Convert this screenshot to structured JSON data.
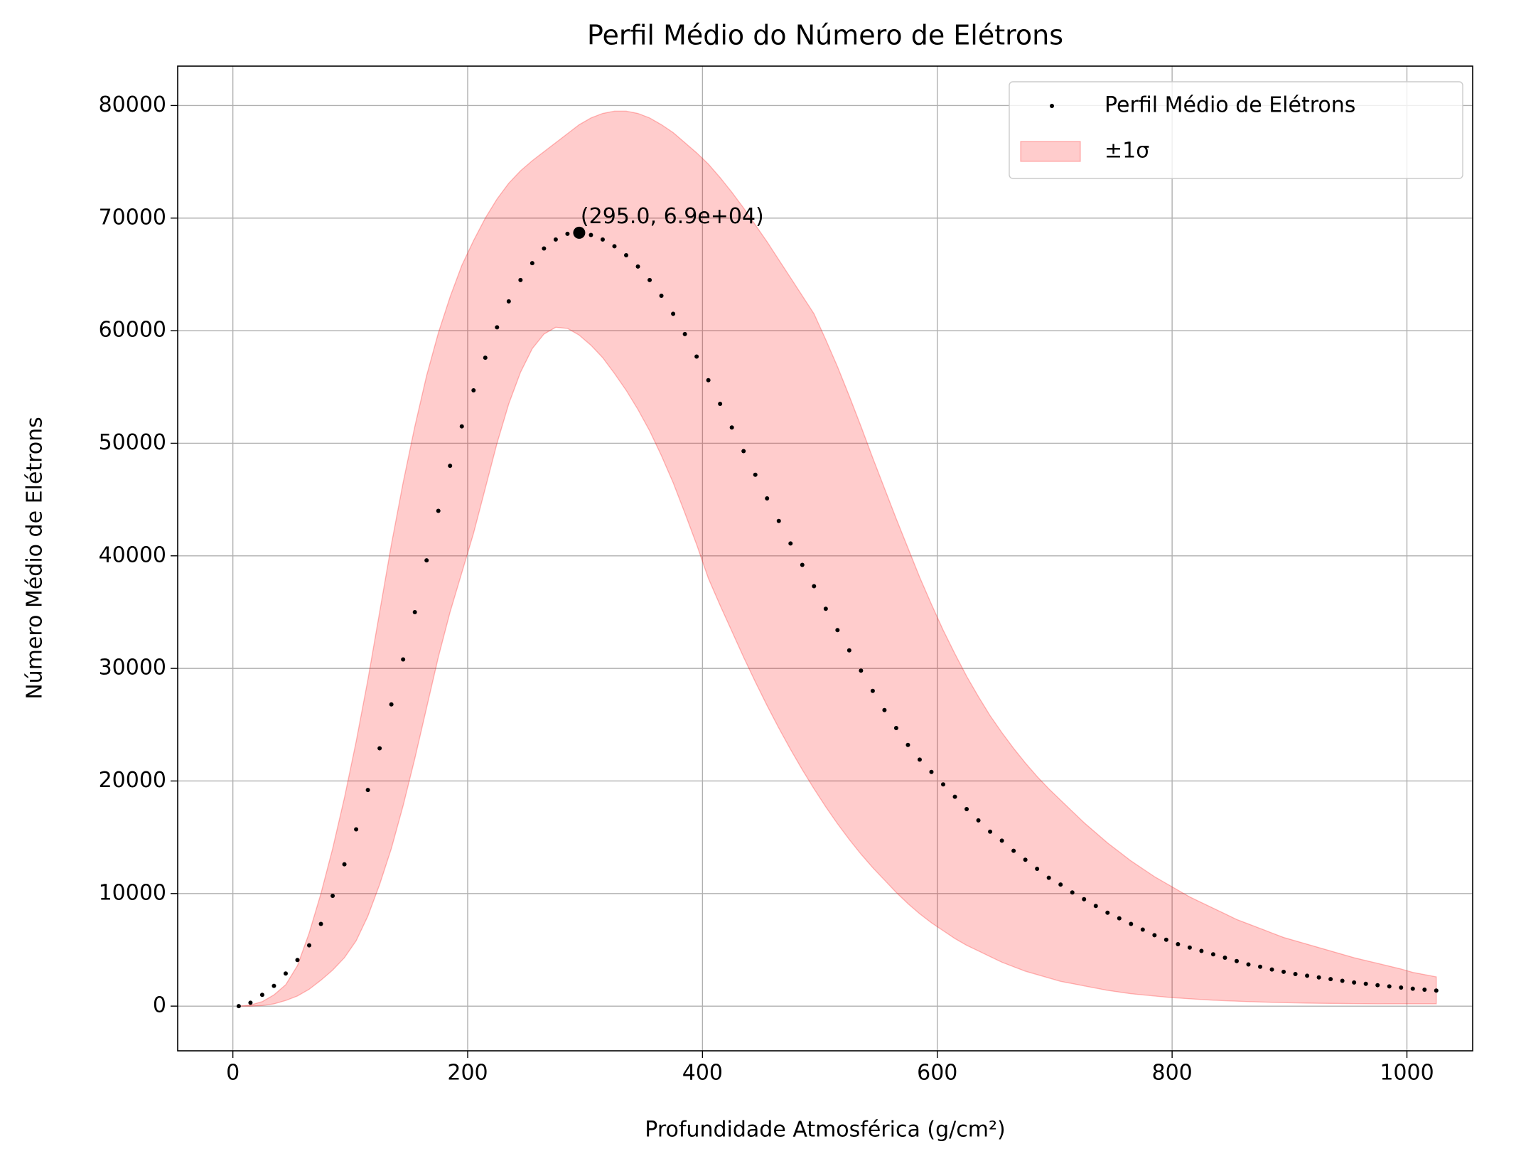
{
  "chart_data": {
    "type": "scatter",
    "title": "Perfil Médio do Número de Elétrons",
    "xlabel": "Profundidade Atmosférica (g/cm²)",
    "ylabel": "Número Médio de Elétrons",
    "x": [
      5,
      15,
      25,
      35,
      45,
      55,
      65,
      75,
      85,
      95,
      105,
      115,
      125,
      135,
      145,
      155,
      165,
      175,
      185,
      195,
      205,
      215,
      225,
      235,
      245,
      255,
      265,
      275,
      285,
      295,
      305,
      315,
      325,
      335,
      345,
      355,
      365,
      375,
      385,
      395,
      405,
      415,
      425,
      435,
      445,
      455,
      465,
      475,
      485,
      495,
      505,
      515,
      525,
      535,
      545,
      555,
      565,
      575,
      585,
      595,
      605,
      615,
      625,
      635,
      645,
      655,
      665,
      675,
      685,
      695,
      705,
      715,
      725,
      735,
      745,
      755,
      765,
      775,
      785,
      795,
      805,
      815,
      825,
      835,
      845,
      855,
      865,
      875,
      885,
      895,
      905,
      915,
      925,
      935,
      945,
      955,
      965,
      975,
      985,
      995,
      1005,
      1015,
      1025
    ],
    "series": [
      {
        "name": "Perfil Médio de Elétrons",
        "color": "#000000",
        "values": [
          0,
          300,
          1000,
          1800,
          2900,
          4100,
          5400,
          7300,
          9800,
          12600,
          15700,
          19200,
          22900,
          26800,
          30800,
          35000,
          39600,
          44000,
          48000,
          51500,
          54700,
          57600,
          60300,
          62600,
          64500,
          66000,
          67300,
          68100,
          68600,
          68700,
          68500,
          68100,
          67500,
          66700,
          65700,
          64500,
          63100,
          61500,
          59700,
          57700,
          55600,
          53500,
          51400,
          49300,
          47200,
          45100,
          43100,
          41100,
          39200,
          37300,
          35300,
          33400,
          31600,
          29800,
          28000,
          26300,
          24700,
          23200,
          21900,
          20800,
          19700,
          18600,
          17500,
          16500,
          15500,
          14700,
          13800,
          13000,
          12200,
          11400,
          10800,
          10100,
          9500,
          8900,
          8300,
          7800,
          7300,
          6800,
          6300,
          5900,
          5500,
          5200,
          4900,
          4600,
          4300,
          4000,
          3700,
          3500,
          3250,
          3050,
          2850,
          2700,
          2550,
          2400,
          2250,
          2100,
          1980,
          1860,
          1750,
          1650,
          1550,
          1460,
          1380
        ]
      }
    ],
    "band": {
      "name": "±1σ",
      "color": "#ff0000",
      "upper": [
        0,
        100,
        400,
        1000,
        1900,
        3600,
        6500,
        10000,
        14000,
        18500,
        23500,
        29000,
        35000,
        41000,
        46500,
        51500,
        56000,
        59800,
        63000,
        65800,
        68000,
        70000,
        71700,
        73100,
        74200,
        75100,
        75900,
        76700,
        77500,
        78300,
        78900,
        79300,
        79500,
        79500,
        79300,
        78900,
        78300,
        77600,
        76700,
        75800,
        74800,
        73600,
        72300,
        70900,
        69400,
        67900,
        66300,
        64700,
        63100,
        61500,
        59200,
        56800,
        54200,
        51500,
        48700,
        46000,
        43300,
        40700,
        38100,
        35700,
        33400,
        31300,
        29300,
        27500,
        25800,
        24300,
        22900,
        21600,
        20400,
        19300,
        18300,
        17300,
        16300,
        15400,
        14500,
        13700,
        12900,
        12200,
        11500,
        10900,
        10300,
        9700,
        9200,
        8700,
        8200,
        7700,
        7300,
        6900,
        6500,
        6100,
        5800,
        5500,
        5200,
        4900,
        4600,
        4300,
        4050,
        3800,
        3550,
        3300,
        3000,
        2800,
        2600
      ],
      "lower": [
        0,
        0,
        50,
        200,
        500,
        900,
        1500,
        2300,
        3200,
        4300,
        5800,
        8000,
        10800,
        14000,
        17800,
        22000,
        26500,
        31000,
        35000,
        38500,
        42000,
        46000,
        50000,
        53500,
        56300,
        58400,
        59700,
        60300,
        60200,
        59600,
        58700,
        57600,
        56200,
        54700,
        53000,
        51100,
        48900,
        46500,
        43800,
        41000,
        38000,
        35600,
        33300,
        31000,
        28800,
        26700,
        24700,
        22800,
        21000,
        19300,
        17700,
        16200,
        14800,
        13500,
        12300,
        11200,
        10100,
        9100,
        8200,
        7400,
        6700,
        6000,
        5400,
        4900,
        4400,
        3900,
        3500,
        3100,
        2800,
        2500,
        2200,
        2000,
        1800,
        1600,
        1400,
        1250,
        1100,
        1000,
        900,
        800,
        720,
        650,
        590,
        530,
        480,
        440,
        400,
        370,
        340,
        310,
        290,
        270,
        250,
        240,
        230,
        220,
        210,
        205,
        200,
        200,
        200,
        200,
        200
      ]
    },
    "peak": {
      "x": 295,
      "y": 68700,
      "label": "(295.0, 6.9e+04)"
    },
    "xlim": [
      -47,
      1056
    ],
    "ylim": [
      -3970,
      83500
    ],
    "xticks": [
      0,
      200,
      400,
      600,
      800,
      1000
    ],
    "yticks": [
      0,
      10000,
      20000,
      30000,
      40000,
      50000,
      60000,
      70000,
      80000
    ],
    "grid": true,
    "legend": "upper right"
  }
}
